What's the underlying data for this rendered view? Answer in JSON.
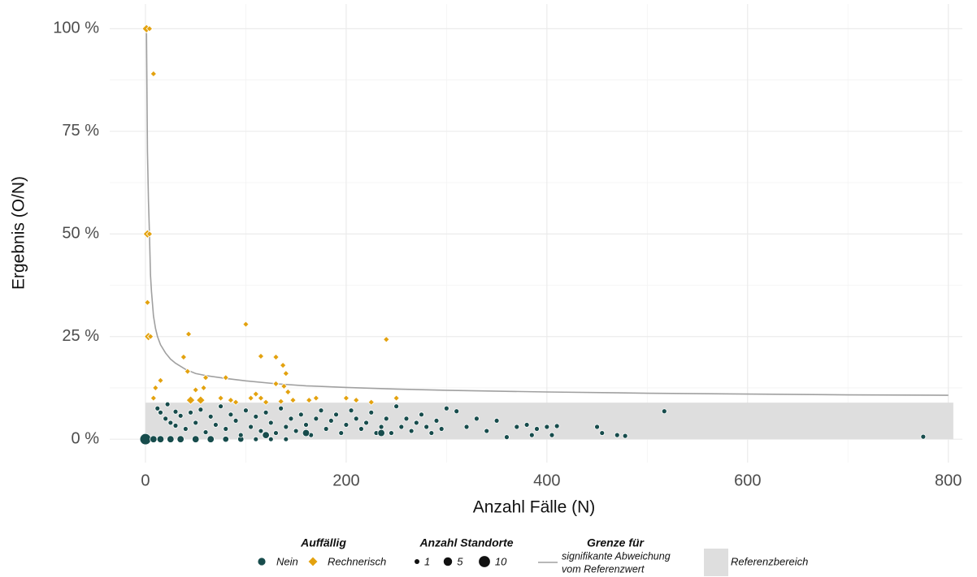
{
  "chart_data": {
    "type": "scatter",
    "x_label": "Anzahl Fälle (N)",
    "y_label": "Ergebnis (O/N)",
    "xlim": [
      -35.6,
      814
    ],
    "ylim": [
      -5.7,
      106
    ],
    "xticks": [
      0,
      200,
      400,
      600,
      800
    ],
    "yticks": [
      {
        "value": 0,
        "label": "0 %"
      },
      {
        "value": 25,
        "label": "25 %"
      },
      {
        "value": 50,
        "label": "50 %"
      },
      {
        "value": 75,
        "label": "75 %"
      },
      {
        "value": 100,
        "label": "100 %"
      }
    ],
    "x_minor_gridlines": [
      100,
      300,
      500,
      700
    ],
    "y_minor_gridlines": [
      12.5,
      37.5,
      62.5,
      87.5
    ],
    "grid": true,
    "reference_area": {
      "name": "Referenzbereich",
      "color": "#dedede",
      "xlim": [
        0,
        805
      ],
      "ylim": [
        0,
        8.9
      ]
    },
    "boundary": {
      "title": "Grenze für",
      "name": [
        "signifikante Abweichung",
        "vom Referenzwert"
      ],
      "color": "#a0a0a0",
      "x": [
        1,
        2,
        3,
        4,
        5,
        6,
        7,
        8,
        10,
        12,
        15,
        20,
        25,
        30,
        40,
        50,
        60,
        80,
        100,
        130,
        160,
        200,
        250,
        300,
        400,
        500,
        600,
        700,
        800
      ],
      "values": [
        100,
        70,
        58,
        50,
        40,
        36,
        33,
        30,
        27,
        25,
        23,
        21,
        19.5,
        18.5,
        17,
        16,
        15.5,
        14.8,
        14.2,
        13.5,
        13,
        12.6,
        12.2,
        11.9,
        11.5,
        11.2,
        11,
        10.8,
        10.7
      ]
    },
    "status_title": "Auffällig",
    "size_title": "Anzahl Standorte",
    "legend_sizes": [
      1,
      5,
      10
    ],
    "series": [
      {
        "name": "Nein",
        "color": "#174c4c",
        "shape": "circle",
        "x": [
          0,
          8,
          15,
          25,
          35,
          50,
          65,
          80,
          95,
          110,
          125,
          140,
          12,
          15,
          20,
          22,
          25,
          30,
          30,
          35,
          40,
          45,
          50,
          55,
          60,
          65,
          70,
          75,
          80,
          85,
          90,
          95,
          100,
          105,
          110,
          115,
          120,
          125,
          130,
          135,
          140,
          145,
          150,
          155,
          160,
          165,
          170,
          175,
          180,
          185,
          190,
          195,
          200,
          205,
          210,
          215,
          220,
          225,
          230,
          235,
          240,
          245,
          250,
          255,
          260,
          265,
          270,
          275,
          280,
          285,
          290,
          295,
          120,
          160,
          235,
          300,
          310,
          320,
          330,
          340,
          350,
          360,
          370,
          380,
          385,
          390,
          400,
          405,
          410,
          450,
          455,
          470,
          478,
          517,
          775
        ],
        "values": [
          0,
          0,
          0,
          0,
          0,
          0,
          0,
          0,
          0,
          0,
          0,
          0,
          7.5,
          6.5,
          5,
          8.5,
          4,
          6.7,
          3.3,
          5.7,
          2.5,
          6.5,
          4,
          7.2,
          1.7,
          5.5,
          3.5,
          8,
          2.5,
          6,
          4.5,
          1,
          7,
          3,
          5.5,
          2,
          6.5,
          4,
          1.5,
          7.5,
          3,
          5,
          2,
          6,
          3.5,
          1,
          5,
          7,
          2.5,
          4.5,
          6,
          1.5,
          3.5,
          7,
          5,
          2.5,
          4,
          6.5,
          1.5,
          3,
          5,
          1.5,
          8,
          3,
          5,
          2,
          4,
          6,
          3,
          1.5,
          4.5,
          2.5,
          1,
          1.5,
          1.5,
          7.5,
          6.8,
          3,
          5,
          2,
          4.5,
          0.5,
          3,
          3.5,
          1,
          2.5,
          3,
          1,
          3.2,
          3,
          1.5,
          1,
          0.8,
          6.8,
          0.6
        ],
        "sizes": [
          10,
          3,
          3,
          3,
          3,
          3,
          3,
          2,
          2,
          1,
          1,
          1,
          1,
          1,
          1,
          1,
          1,
          1,
          1,
          1,
          1,
          1,
          1,
          1,
          1,
          1,
          1,
          1,
          1,
          1,
          1,
          1,
          1,
          1,
          1,
          1,
          1,
          1,
          1,
          1,
          1,
          1,
          1,
          1,
          1,
          1,
          1,
          1,
          1,
          1,
          1,
          1,
          1,
          1,
          1,
          1,
          1,
          1,
          1,
          1,
          1,
          1,
          1,
          1,
          1,
          1,
          1,
          1,
          1,
          1,
          1,
          1,
          3,
          3,
          3,
          1,
          1,
          1,
          1,
          1,
          1,
          1,
          1,
          1,
          1,
          1,
          1,
          1,
          1,
          1,
          1,
          1,
          1,
          1,
          1
        ]
      },
      {
        "name": "Rechnerisch",
        "color": "#e3a20f",
        "shape": "diamond",
        "x": [
          1,
          4,
          8,
          2,
          4,
          2,
          3,
          5,
          10,
          15,
          8,
          43,
          100,
          38,
          115,
          130,
          137,
          140,
          60,
          80,
          42,
          130,
          138,
          142,
          45,
          55,
          50,
          58,
          75,
          85,
          90,
          110,
          115,
          120,
          135,
          163,
          170,
          200,
          210,
          225,
          240,
          250,
          147,
          105
        ],
        "values": [
          100,
          100,
          89,
          50,
          50,
          33.3,
          25,
          25,
          12.5,
          14.3,
          10,
          25.6,
          28,
          20,
          20.2,
          20,
          18,
          16,
          15,
          15,
          16.5,
          13.5,
          12.9,
          11.5,
          9.5,
          9.5,
          12,
          12.5,
          10,
          9.5,
          9,
          11,
          10,
          9,
          9.2,
          9.5,
          10,
          10,
          9.5,
          9,
          24.3,
          10,
          9.5,
          10
        ],
        "sizes": [
          3,
          1,
          1,
          3,
          1,
          1,
          3,
          1,
          1,
          1,
          1,
          1,
          1,
          1,
          1,
          1,
          1,
          1,
          1,
          1,
          1,
          1,
          1,
          1,
          3,
          3,
          1,
          1,
          1,
          1,
          1,
          1,
          1,
          1,
          1,
          1,
          1,
          1,
          1,
          1,
          1,
          1,
          1,
          1
        ]
      }
    ]
  }
}
